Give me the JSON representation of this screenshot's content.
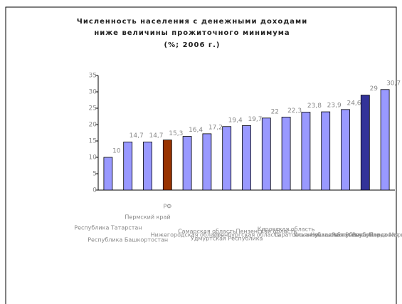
{
  "chart_data": {
    "type": "bar",
    "title": [
      "Численность населения с денежными доходами",
      "ниже величины прожиточного минимума",
      "(%; 2006 г.)"
    ],
    "categories": [
      "Республика Татарстан",
      "Республика Башкортостан",
      "Пермский край",
      "РФ",
      "Нижегородская область",
      "Самарская область",
      "Удмуртская Республика",
      "Оренбургская область",
      "Пензенская область",
      "Кировская область",
      "Саратовская область",
      "Ульяновская область",
      "Чувашская Республика",
      "Республика Мордовия",
      "Республика Марий Эл"
    ],
    "values": [
      10,
      14.7,
      14.7,
      15.3,
      16.4,
      17.2,
      19.4,
      19.7,
      22,
      22.3,
      23.8,
      23.9,
      24.6,
      29,
      30.7
    ],
    "value_labels": [
      "10",
      "14,7",
      "14,7",
      "15,3",
      "16,4",
      "17,2",
      "19,4",
      "19,7",
      "22",
      "22,3",
      "23,8",
      "23,9",
      "24,6",
      "29",
      "30,7"
    ],
    "color": "#9999ff",
    "colors": [
      "#9999ff",
      "#9999ff",
      "#9999ff",
      "#993300",
      "#9999ff",
      "#9999ff",
      "#9999ff",
      "#9999ff",
      "#9999ff",
      "#9999ff",
      "#9999ff",
      "#9999ff",
      "#9999ff",
      "#333399",
      "#9999ff"
    ],
    "ylim": [
      0,
      35
    ],
    "yticks": [
      0,
      5,
      10,
      15,
      20,
      25,
      30,
      35
    ],
    "grid": false
  }
}
